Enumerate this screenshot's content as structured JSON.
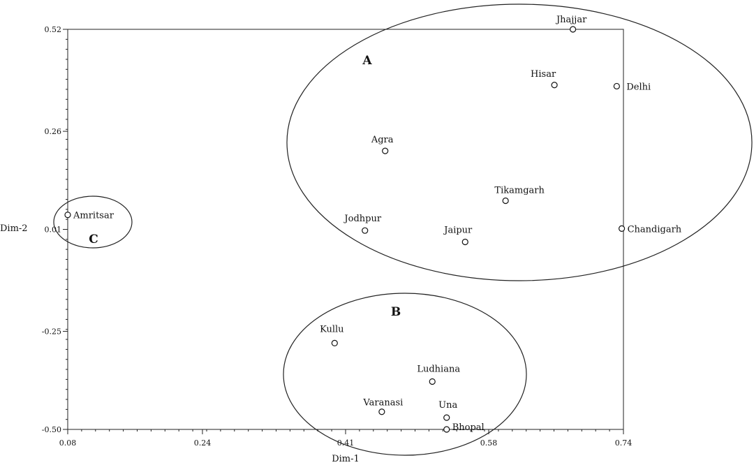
{
  "chart_data": {
    "type": "scatter",
    "title": "",
    "xlabel": "Dim-1",
    "ylabel": "Dim-2",
    "xlim": [
      0.08,
      0.74
    ],
    "ylim": [
      -0.5,
      0.52
    ],
    "xticks": [
      "0.08",
      "0.24",
      "0.41",
      "0.58",
      "0.74"
    ],
    "yticks": [
      "0.52",
      "0.26",
      "0.01",
      "-0.25",
      "-0.50"
    ],
    "points": [
      {
        "label": "Jhajjar",
        "x": 0.68,
        "y": 0.52
      },
      {
        "label": "Hisar",
        "x": 0.658,
        "y": 0.378
      },
      {
        "label": "Delhi",
        "x": 0.732,
        "y": 0.375
      },
      {
        "label": "Agra",
        "x": 0.457,
        "y": 0.21
      },
      {
        "label": "Tikamgarh",
        "x": 0.6,
        "y": 0.083
      },
      {
        "label": "Amritsar",
        "x": 0.08,
        "y": 0.047
      },
      {
        "label": "Jodhpur",
        "x": 0.433,
        "y": 0.007
      },
      {
        "label": "Chandigarh",
        "x": 0.738,
        "y": 0.012
      },
      {
        "label": "Jaipur",
        "x": 0.552,
        "y": -0.022
      },
      {
        "label": "Kullu",
        "x": 0.397,
        "y": -0.28
      },
      {
        "label": "Ludhiana",
        "x": 0.513,
        "y": -0.378
      },
      {
        "label": "Varanasi",
        "x": 0.453,
        "y": -0.455
      },
      {
        "label": "Una",
        "x": 0.53,
        "y": -0.47
      },
      {
        "label": "Bhopal",
        "x": 0.53,
        "y": -0.5
      }
    ],
    "clusters": [
      {
        "label": "A",
        "members": [
          "Jhajjar",
          "Hisar",
          "Delhi",
          "Agra",
          "Tikamgarh",
          "Jodhpur",
          "Chandigarh",
          "Jaipur"
        ]
      },
      {
        "label": "B",
        "members": [
          "Kullu",
          "Ludhiana",
          "Varanasi",
          "Una",
          "Bhopal"
        ]
      },
      {
        "label": "C",
        "members": [
          "Amritsar"
        ]
      }
    ]
  }
}
